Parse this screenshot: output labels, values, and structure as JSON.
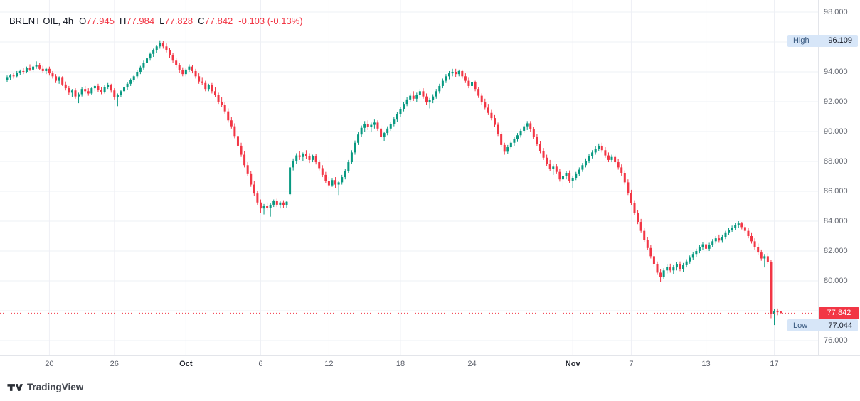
{
  "header": {
    "title": "BRENT OIL, 4h",
    "symbol": "BRENT OIL",
    "interval": "4h",
    "ohlc": [
      {
        "k": "O",
        "v": "77.945"
      },
      {
        "k": "H",
        "v": "77.984"
      },
      {
        "k": "L",
        "v": "77.828"
      },
      {
        "k": "C",
        "v": "77.842"
      }
    ],
    "change": "-0.103 (-0.13%)"
  },
  "price_scale": {
    "labels": [
      "98.000",
      "96.000",
      "94.000",
      "92.000",
      "90.000",
      "88.000",
      "86.000",
      "84.000",
      "82.000",
      "80.000",
      "78.000",
      "76.000"
    ],
    "high_badge": {
      "label": "High",
      "value": "96.109"
    },
    "low_badge": {
      "label": "Low",
      "value": "77.044"
    },
    "last_badge": "77.842"
  },
  "footer": {
    "brand": "TradingView"
  },
  "chart_data": {
    "type": "candlestick",
    "symbol": "BRENT OIL",
    "interval": "4h",
    "title": "BRENT OIL, 4h",
    "ylim": [
      75.0,
      98.8
    ],
    "y_ticks": [
      98,
      96,
      94,
      92,
      90,
      88,
      86,
      84,
      82,
      80,
      78,
      76
    ],
    "x_ticks": [
      {
        "label": "20",
        "i": 13
      },
      {
        "label": "26",
        "i": 33
      },
      {
        "label": "Oct",
        "i": 55,
        "month": true
      },
      {
        "label": "6",
        "i": 78
      },
      {
        "label": "12",
        "i": 99
      },
      {
        "label": "18",
        "i": 121
      },
      {
        "label": "24",
        "i": 143
      },
      {
        "label": "Nov",
        "i": 174,
        "month": true
      },
      {
        "label": "7",
        "i": 192
      },
      {
        "label": "13",
        "i": 215
      },
      {
        "label": "17",
        "i": 236
      }
    ],
    "high": 96.109,
    "low": 77.044,
    "last": 77.842,
    "grid": true,
    "legend_position": "top-left",
    "colors": {
      "up": "#089981",
      "down": "#f23645",
      "grid": "#eef0f5",
      "last_line": "#f23645",
      "badge_blue": "#d7e6f8"
    },
    "candles": [
      [
        93.45,
        93.75,
        93.3,
        93.6
      ],
      [
        93.6,
        93.85,
        93.45,
        93.75
      ],
      [
        93.75,
        93.95,
        93.55,
        93.7
      ],
      [
        93.7,
        94.05,
        93.6,
        93.95
      ],
      [
        93.95,
        94.15,
        93.8,
        94.05
      ],
      [
        94.05,
        94.25,
        93.85,
        94.0
      ],
      [
        94.0,
        94.35,
        93.9,
        94.25
      ],
      [
        94.25,
        94.5,
        94.05,
        94.15
      ],
      [
        94.15,
        94.45,
        94.0,
        94.35
      ],
      [
        94.35,
        94.7,
        94.2,
        94.45
      ],
      [
        94.45,
        94.6,
        94.1,
        94.2
      ],
      [
        94.2,
        94.4,
        93.95,
        94.05
      ],
      [
        94.05,
        94.3,
        93.85,
        94.2
      ],
      [
        94.2,
        94.35,
        93.75,
        93.9
      ],
      [
        93.9,
        94.05,
        93.55,
        93.7
      ],
      [
        93.7,
        93.85,
        93.25,
        93.4
      ],
      [
        93.4,
        93.7,
        93.2,
        93.6
      ],
      [
        93.6,
        93.7,
        93.05,
        93.15
      ],
      [
        93.15,
        93.35,
        92.75,
        92.9
      ],
      [
        92.9,
        93.05,
        92.45,
        92.6
      ],
      [
        92.6,
        92.85,
        92.3,
        92.75
      ],
      [
        92.75,
        92.9,
        92.2,
        92.35
      ],
      [
        92.35,
        92.6,
        91.9,
        92.5
      ],
      [
        92.5,
        92.95,
        92.35,
        92.85
      ],
      [
        92.85,
        93.05,
        92.55,
        92.7
      ],
      [
        92.7,
        92.9,
        92.4,
        92.55
      ],
      [
        92.55,
        93.0,
        92.45,
        92.9
      ],
      [
        92.9,
        93.15,
        92.7,
        93.05
      ],
      [
        93.05,
        93.2,
        92.65,
        92.8
      ],
      [
        92.8,
        93.0,
        92.5,
        92.65
      ],
      [
        92.65,
        93.1,
        92.55,
        93.0
      ],
      [
        93.0,
        93.25,
        92.85,
        93.1
      ],
      [
        93.1,
        93.2,
        92.6,
        92.75
      ],
      [
        92.75,
        92.9,
        92.15,
        92.3
      ],
      [
        92.3,
        92.55,
        91.7,
        92.45
      ],
      [
        92.45,
        92.8,
        92.3,
        92.7
      ],
      [
        92.7,
        93.05,
        92.55,
        92.95
      ],
      [
        92.95,
        93.3,
        92.8,
        93.2
      ],
      [
        93.2,
        93.55,
        93.05,
        93.45
      ],
      [
        93.45,
        93.8,
        93.3,
        93.7
      ],
      [
        93.7,
        94.1,
        93.55,
        94.0
      ],
      [
        94.0,
        94.4,
        93.85,
        94.3
      ],
      [
        94.3,
        94.75,
        94.15,
        94.6
      ],
      [
        94.6,
        95.0,
        94.45,
        94.9
      ],
      [
        94.9,
        95.3,
        94.75,
        95.2
      ],
      [
        95.2,
        95.55,
        95.0,
        95.45
      ],
      [
        95.45,
        95.8,
        95.25,
        95.7
      ],
      [
        95.7,
        96.109,
        95.55,
        95.95
      ],
      [
        95.95,
        96.05,
        95.55,
        95.7
      ],
      [
        95.7,
        95.9,
        95.3,
        95.45
      ],
      [
        95.45,
        95.6,
        94.95,
        95.1
      ],
      [
        95.1,
        95.25,
        94.6,
        94.75
      ],
      [
        94.75,
        94.95,
        94.3,
        94.45
      ],
      [
        94.45,
        94.6,
        93.95,
        94.1
      ],
      [
        94.1,
        94.3,
        93.7,
        93.85
      ],
      [
        93.85,
        94.25,
        93.7,
        94.15
      ],
      [
        94.15,
        94.5,
        94.0,
        94.35
      ],
      [
        94.35,
        94.45,
        93.9,
        94.05
      ],
      [
        94.05,
        94.2,
        93.55,
        93.7
      ],
      [
        93.7,
        93.9,
        93.2,
        93.35
      ],
      [
        93.35,
        93.6,
        93.1,
        93.25
      ],
      [
        93.25,
        93.4,
        92.7,
        92.85
      ],
      [
        92.85,
        93.2,
        92.7,
        93.1
      ],
      [
        93.1,
        93.25,
        92.55,
        92.7
      ],
      [
        92.7,
        92.95,
        92.3,
        92.45
      ],
      [
        92.45,
        92.6,
        91.85,
        92.0
      ],
      [
        92.0,
        92.3,
        91.65,
        91.8
      ],
      [
        91.8,
        91.95,
        91.2,
        91.35
      ],
      [
        91.35,
        91.55,
        90.6,
        90.75
      ],
      [
        90.75,
        91.0,
        90.2,
        90.35
      ],
      [
        90.35,
        90.55,
        89.55,
        89.7
      ],
      [
        89.7,
        89.95,
        88.9,
        89.05
      ],
      [
        89.05,
        89.25,
        88.3,
        88.45
      ],
      [
        88.45,
        88.7,
        87.6,
        87.75
      ],
      [
        87.75,
        87.95,
        87.0,
        87.15
      ],
      [
        87.15,
        87.35,
        86.3,
        86.45
      ],
      [
        86.45,
        86.7,
        85.7,
        85.85
      ],
      [
        85.85,
        86.05,
        85.1,
        85.25
      ],
      [
        85.25,
        85.45,
        84.55,
        84.85
      ],
      [
        84.85,
        85.15,
        84.45,
        85.0
      ],
      [
        85.0,
        85.25,
        84.7,
        84.9
      ],
      [
        84.9,
        85.2,
        84.3,
        85.1
      ],
      [
        85.1,
        85.45,
        84.95,
        85.35
      ],
      [
        85.35,
        85.5,
        84.95,
        85.1
      ],
      [
        85.1,
        85.35,
        84.85,
        85.25
      ],
      [
        85.25,
        85.4,
        84.9,
        85.05
      ],
      [
        85.05,
        85.35,
        84.9,
        85.3
      ],
      [
        85.8,
        87.8,
        85.7,
        87.6
      ],
      [
        87.6,
        88.2,
        87.4,
        88.05
      ],
      [
        88.05,
        88.55,
        87.85,
        88.4
      ],
      [
        88.4,
        88.7,
        88.1,
        88.3
      ],
      [
        88.3,
        88.6,
        88.0,
        88.5
      ],
      [
        88.5,
        88.75,
        88.15,
        88.35
      ],
      [
        88.35,
        88.55,
        87.9,
        88.1
      ],
      [
        88.1,
        88.45,
        87.95,
        88.35
      ],
      [
        88.35,
        88.5,
        87.8,
        87.95
      ],
      [
        87.95,
        88.1,
        87.4,
        87.55
      ],
      [
        87.55,
        87.75,
        86.95,
        87.1
      ],
      [
        87.1,
        87.3,
        86.55,
        86.7
      ],
      [
        86.7,
        86.95,
        86.25,
        86.4
      ],
      [
        86.4,
        86.85,
        86.3,
        86.75
      ],
      [
        86.75,
        86.95,
        86.2,
        86.45
      ],
      [
        86.45,
        86.7,
        85.75,
        86.6
      ],
      [
        86.6,
        87.1,
        86.45,
        86.95
      ],
      [
        86.95,
        87.5,
        86.8,
        87.35
      ],
      [
        87.35,
        88.1,
        87.2,
        87.95
      ],
      [
        87.95,
        88.75,
        87.85,
        88.6
      ],
      [
        88.6,
        89.4,
        88.45,
        89.25
      ],
      [
        89.25,
        89.95,
        89.1,
        89.8
      ],
      [
        89.8,
        90.4,
        89.65,
        90.25
      ],
      [
        90.25,
        90.7,
        90.0,
        90.5
      ],
      [
        90.5,
        90.75,
        90.1,
        90.3
      ],
      [
        90.3,
        90.6,
        89.95,
        90.45
      ],
      [
        90.45,
        90.8,
        90.2,
        90.6
      ],
      [
        90.6,
        90.75,
        90.05,
        90.2
      ],
      [
        90.2,
        90.4,
        89.5,
        89.65
      ],
      [
        89.65,
        90.0,
        89.35,
        89.9
      ],
      [
        89.9,
        90.35,
        89.75,
        90.2
      ],
      [
        90.2,
        90.65,
        90.05,
        90.5
      ],
      [
        90.5,
        90.95,
        90.35,
        90.8
      ],
      [
        90.8,
        91.3,
        90.65,
        91.15
      ],
      [
        91.15,
        91.65,
        91.0,
        91.5
      ],
      [
        91.5,
        92.0,
        91.35,
        91.85
      ],
      [
        91.85,
        92.3,
        91.7,
        92.15
      ],
      [
        92.15,
        92.55,
        91.95,
        92.4
      ],
      [
        92.4,
        92.7,
        92.05,
        92.2
      ],
      [
        92.2,
        92.6,
        92.0,
        92.45
      ],
      [
        92.45,
        92.85,
        92.25,
        92.7
      ],
      [
        92.7,
        92.9,
        92.2,
        92.35
      ],
      [
        92.35,
        92.55,
        91.8,
        91.95
      ],
      [
        91.95,
        92.25,
        91.55,
        92.1
      ],
      [
        92.1,
        92.5,
        91.9,
        92.35
      ],
      [
        92.35,
        92.85,
        92.2,
        92.7
      ],
      [
        92.7,
        93.2,
        92.55,
        93.05
      ],
      [
        93.05,
        93.55,
        92.9,
        93.4
      ],
      [
        93.4,
        93.85,
        93.25,
        93.7
      ],
      [
        93.7,
        94.05,
        93.5,
        93.9
      ],
      [
        93.9,
        94.2,
        93.7,
        94.0
      ],
      [
        94.0,
        94.2,
        93.65,
        93.85
      ],
      [
        93.85,
        94.15,
        93.7,
        94.05
      ],
      [
        94.05,
        94.15,
        93.55,
        93.7
      ],
      [
        93.7,
        93.9,
        93.25,
        93.4
      ],
      [
        93.4,
        93.6,
        92.9,
        93.05
      ],
      [
        93.05,
        93.45,
        92.95,
        93.3
      ],
      [
        93.3,
        93.4,
        92.7,
        92.85
      ],
      [
        92.85,
        93.0,
        92.25,
        92.4
      ],
      [
        92.4,
        92.55,
        91.8,
        91.95
      ],
      [
        91.95,
        92.2,
        91.45,
        91.6
      ],
      [
        91.6,
        91.85,
        91.1,
        91.25
      ],
      [
        91.25,
        91.45,
        90.75,
        90.9
      ],
      [
        90.9,
        91.1,
        90.3,
        90.45
      ],
      [
        90.45,
        90.6,
        89.7,
        89.85
      ],
      [
        89.85,
        90.0,
        88.95,
        89.1
      ],
      [
        89.1,
        89.25,
        88.45,
        88.65
      ],
      [
        88.65,
        89.1,
        88.5,
        88.95
      ],
      [
        88.95,
        89.4,
        88.8,
        89.25
      ],
      [
        89.25,
        89.65,
        89.05,
        89.5
      ],
      [
        89.5,
        89.9,
        89.3,
        89.75
      ],
      [
        89.75,
        90.2,
        89.6,
        90.05
      ],
      [
        90.05,
        90.5,
        89.9,
        90.35
      ],
      [
        90.35,
        90.7,
        90.1,
        90.55
      ],
      [
        90.55,
        90.7,
        90.0,
        90.15
      ],
      [
        90.15,
        90.3,
        89.5,
        89.65
      ],
      [
        89.65,
        89.85,
        89.0,
        89.15
      ],
      [
        89.15,
        89.35,
        88.55,
        88.7
      ],
      [
        88.7,
        88.9,
        88.1,
        88.25
      ],
      [
        88.25,
        88.45,
        87.7,
        87.85
      ],
      [
        87.85,
        88.1,
        87.35,
        87.5
      ],
      [
        87.5,
        87.8,
        87.1,
        87.65
      ],
      [
        87.65,
        87.85,
        87.15,
        87.3
      ],
      [
        87.3,
        87.5,
        86.65,
        86.8
      ],
      [
        86.8,
        87.15,
        86.3,
        87.0
      ],
      [
        87.0,
        87.35,
        86.8,
        87.2
      ],
      [
        87.2,
        87.4,
        86.55,
        86.7
      ],
      [
        86.7,
        87.05,
        86.2,
        86.9
      ],
      [
        86.9,
        87.3,
        86.75,
        87.15
      ],
      [
        87.15,
        87.6,
        87.0,
        87.45
      ],
      [
        87.45,
        87.9,
        87.3,
        87.75
      ],
      [
        87.75,
        88.2,
        87.6,
        88.05
      ],
      [
        88.05,
        88.5,
        87.9,
        88.35
      ],
      [
        88.35,
        88.75,
        88.2,
        88.6
      ],
      [
        88.6,
        89.0,
        88.45,
        88.85
      ],
      [
        88.85,
        89.2,
        88.7,
        89.05
      ],
      [
        89.05,
        89.25,
        88.6,
        88.75
      ],
      [
        88.75,
        88.95,
        88.25,
        88.4
      ],
      [
        88.4,
        88.6,
        87.95,
        88.1
      ],
      [
        88.1,
        88.45,
        87.95,
        88.3
      ],
      [
        88.3,
        88.45,
        87.8,
        87.95
      ],
      [
        87.95,
        88.15,
        87.45,
        87.6
      ],
      [
        87.6,
        87.8,
        87.05,
        87.2
      ],
      [
        87.2,
        87.4,
        86.45,
        86.6
      ],
      [
        86.6,
        86.8,
        85.75,
        85.9
      ],
      [
        85.9,
        86.1,
        85.05,
        85.2
      ],
      [
        85.2,
        85.4,
        84.4,
        84.55
      ],
      [
        84.55,
        84.75,
        83.8,
        83.95
      ],
      [
        83.95,
        84.15,
        83.2,
        83.35
      ],
      [
        83.35,
        83.55,
        82.6,
        82.75
      ],
      [
        82.75,
        82.95,
        82.05,
        82.2
      ],
      [
        82.2,
        82.4,
        81.5,
        81.65
      ],
      [
        81.65,
        81.85,
        80.95,
        81.1
      ],
      [
        81.1,
        81.3,
        80.4,
        80.55
      ],
      [
        80.55,
        80.8,
        79.95,
        80.25
      ],
      [
        80.25,
        80.85,
        80.1,
        80.7
      ],
      [
        80.7,
        81.1,
        80.5,
        80.95
      ],
      [
        80.95,
        81.15,
        80.55,
        80.7
      ],
      [
        80.7,
        81.05,
        80.45,
        80.9
      ],
      [
        80.9,
        81.25,
        80.7,
        81.1
      ],
      [
        81.1,
        81.3,
        80.65,
        80.8
      ],
      [
        80.8,
        81.2,
        80.6,
        81.05
      ],
      [
        81.05,
        81.45,
        80.9,
        81.3
      ],
      [
        81.3,
        81.7,
        81.15,
        81.55
      ],
      [
        81.55,
        81.95,
        81.4,
        81.8
      ],
      [
        81.8,
        82.15,
        81.6,
        82.0
      ],
      [
        82.0,
        82.4,
        81.85,
        82.25
      ],
      [
        82.25,
        82.6,
        82.05,
        82.45
      ],
      [
        82.45,
        82.65,
        82.0,
        82.15
      ],
      [
        82.15,
        82.55,
        82.0,
        82.4
      ],
      [
        82.4,
        82.8,
        82.25,
        82.65
      ],
      [
        82.65,
        83.0,
        82.5,
        82.85
      ],
      [
        82.85,
        83.1,
        82.55,
        82.7
      ],
      [
        82.7,
        83.1,
        82.55,
        82.95
      ],
      [
        82.95,
        83.35,
        82.8,
        83.2
      ],
      [
        83.2,
        83.55,
        83.05,
        83.4
      ],
      [
        83.4,
        83.7,
        83.25,
        83.55
      ],
      [
        83.55,
        83.9,
        83.4,
        83.75
      ],
      [
        83.75,
        84.0,
        83.55,
        83.85
      ],
      [
        83.85,
        83.95,
        83.45,
        83.6
      ],
      [
        83.6,
        83.8,
        83.2,
        83.35
      ],
      [
        83.35,
        83.55,
        82.85,
        83.0
      ],
      [
        83.0,
        83.2,
        82.5,
        82.65
      ],
      [
        82.65,
        82.85,
        82.1,
        82.25
      ],
      [
        82.25,
        82.5,
        81.75,
        81.9
      ],
      [
        81.9,
        82.1,
        81.35,
        81.5
      ],
      [
        81.5,
        81.8,
        80.9,
        81.65
      ],
      [
        81.65,
        81.85,
        81.1,
        81.25
      ],
      [
        81.25,
        81.4,
        77.5,
        77.8
      ],
      [
        77.8,
        78.1,
        77.044,
        77.95
      ],
      [
        77.95,
        78.15,
        77.7,
        77.9
      ],
      [
        77.945,
        77.984,
        77.828,
        77.842
      ]
    ]
  }
}
